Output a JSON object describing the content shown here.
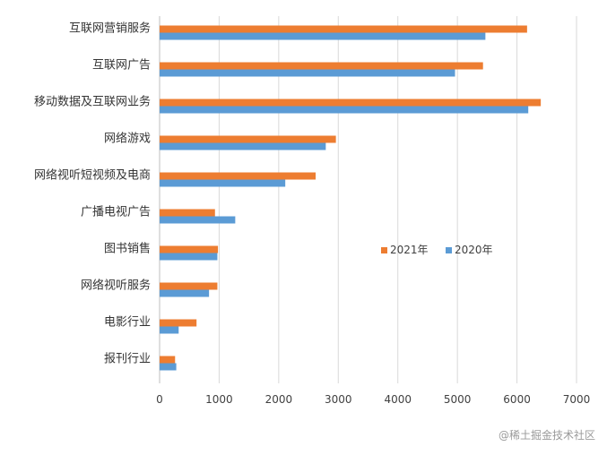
{
  "chart_data": {
    "type": "bar",
    "orientation": "horizontal",
    "title": "",
    "xlabel": "",
    "ylabel": "",
    "xlim": [
      0,
      7000
    ],
    "x_ticks": [
      0,
      1000,
      2000,
      3000,
      4000,
      5000,
      6000,
      7000
    ],
    "grid": "vertical",
    "legend_position": "right",
    "categories": [
      "互联网营销服务",
      "互联网广告",
      "移动数据及互联网业务",
      "网络游戏",
      "网络视听短视频及电商",
      "广播电视广告",
      "图书销售",
      "网络视听服务",
      "电影行业",
      "报刊行业"
    ],
    "series": [
      {
        "name": "2021年",
        "color": "#ED7D31",
        "values": [
          6170,
          5430,
          6400,
          2960,
          2620,
          930,
          980,
          970,
          620,
          260
        ]
      },
      {
        "name": "2020年",
        "color": "#5B9BD5",
        "values": [
          5470,
          4960,
          6190,
          2790,
          2110,
          1270,
          970,
          830,
          320,
          280
        ]
      }
    ]
  },
  "watermark": "@稀土掘金技术社区"
}
